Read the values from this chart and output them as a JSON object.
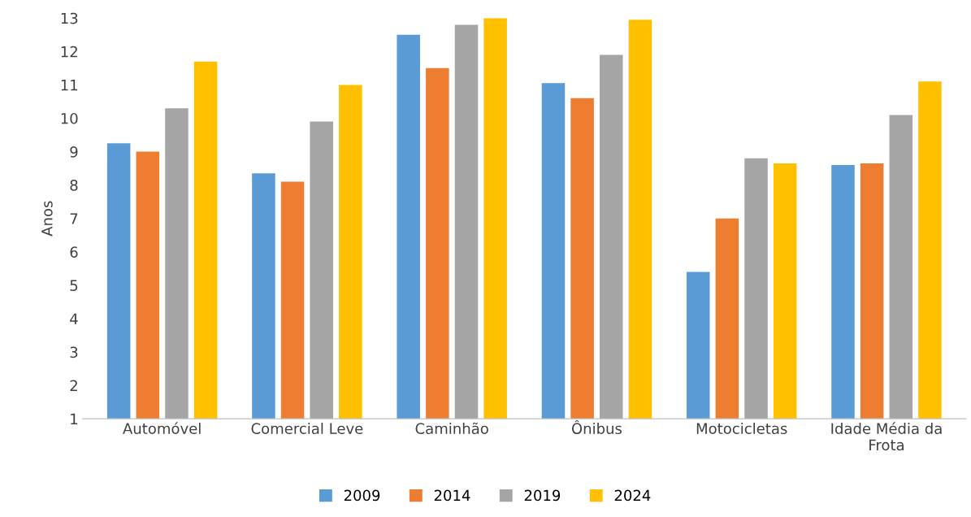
{
  "chart_data": {
    "type": "bar",
    "ylabel": "Anos",
    "categories": [
      "Automóvel",
      "Comercial Leve",
      "Caminhão",
      "Ônibus",
      "Motocicletas",
      "Idade Média da\nFrota"
    ],
    "series": [
      {
        "name": "2009",
        "color": "#5b9bd5",
        "values": [
          9.25,
          8.35,
          12.5,
          11.05,
          5.4,
          8.6
        ]
      },
      {
        "name": "2014",
        "color": "#ed7d31",
        "values": [
          9.0,
          8.1,
          11.5,
          10.6,
          7.0,
          8.65
        ]
      },
      {
        "name": "2019",
        "color": "#a5a5a5",
        "values": [
          10.3,
          9.9,
          12.8,
          11.9,
          8.8,
          10.1
        ]
      },
      {
        "name": "2024",
        "color": "#ffc000",
        "values": [
          11.7,
          11.0,
          13.0,
          12.95,
          8.65,
          11.1
        ]
      }
    ],
    "ylim": [
      1,
      13
    ],
    "yticks": [
      1,
      2,
      3,
      4,
      5,
      6,
      7,
      8,
      9,
      10,
      11,
      12,
      13
    ],
    "grid": false,
    "legend": "bottom"
  }
}
